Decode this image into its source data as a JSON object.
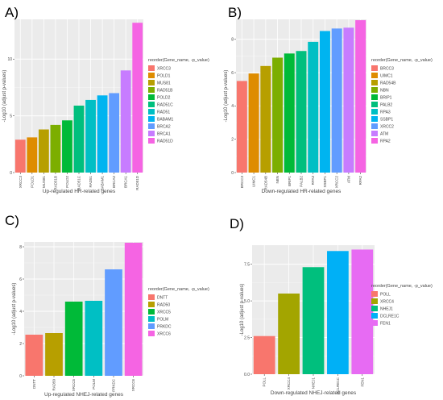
{
  "chart_data": [
    {
      "panel": "A)",
      "type": "bar",
      "xlabel": "Up-regulated HR-related genes",
      "ylabel": "-Log10 (adjust p-values)",
      "legend_title": "reorder(Gene_name, -p_value)",
      "ylim": [
        0,
        13.5
      ],
      "yticks": [
        0,
        5,
        10
      ],
      "grid": true,
      "legend_position": "right",
      "categories": [
        "XRCC3",
        "POLD1",
        "MUS81",
        "RAD51B",
        "POLD2",
        "RAD51C",
        "RAD51",
        "BABAM1",
        "BRCA2",
        "BRCA1",
        "RAD51D"
      ],
      "values": [
        2.9,
        3.1,
        3.8,
        4.2,
        4.6,
        5.9,
        6.4,
        6.8,
        7.0,
        9.0,
        13.2
      ],
      "colors": [
        "#F8766D",
        "#DE8C00",
        "#B79F00",
        "#7CAE00",
        "#00BA38",
        "#00BF7D",
        "#00BFC4",
        "#00B4F0",
        "#619CFF",
        "#C77CFF",
        "#F564E3"
      ]
    },
    {
      "panel": "B)",
      "type": "bar",
      "xlabel": "Down-regulated HR-related genes",
      "ylabel": "-Log10 (adjust p-values)",
      "legend_title": "reorder(Gene_name, -p_value)",
      "ylim": [
        0,
        9.2
      ],
      "yticks": [
        0,
        2,
        4,
        6,
        8
      ],
      "grid": true,
      "legend_position": "right",
      "categories": [
        "BRCC3",
        "UIMC1",
        "RAD54B",
        "NBN",
        "BRIP1",
        "PALB2",
        "RPA3",
        "SSBP1",
        "XRCC2",
        "ATM",
        "RPA2"
      ],
      "values": [
        5.5,
        5.95,
        6.4,
        6.9,
        7.15,
        7.3,
        7.85,
        8.5,
        8.65,
        8.7,
        9.15
      ],
      "colors": [
        "#F8766D",
        "#DE8C00",
        "#B79F00",
        "#7CAE00",
        "#00BA38",
        "#00BF7D",
        "#00BFC4",
        "#00B4F0",
        "#619CFF",
        "#C77CFF",
        "#F564E3"
      ]
    },
    {
      "panel": "C)",
      "type": "bar",
      "xlabel": "Up-regulated NHEJ-related genes",
      "ylabel": "-Log10 (adjust p-values)",
      "legend_title": "reorder(Gene_name, -p_value)",
      "ylim": [
        0,
        8.3
      ],
      "yticks": [
        0,
        2,
        4,
        6,
        8
      ],
      "grid": true,
      "legend_position": "right",
      "categories": [
        "DNTT",
        "RAD50",
        "XRCC5",
        "POLM",
        "PRKDC",
        "XRCC6"
      ],
      "values": [
        2.55,
        2.65,
        4.6,
        4.65,
        6.6,
        8.25
      ],
      "colors": [
        "#F8766D",
        "#B79F00",
        "#00BA38",
        "#00BFC4",
        "#619CFF",
        "#F564E3"
      ]
    },
    {
      "panel": "D)",
      "type": "bar",
      "xlabel": "Down-regulated NHEJ-related genes",
      "ylabel": "-Log10 (adjust p-values)",
      "legend_title": "reorder(Gene_name, -p_value)",
      "ylim": [
        0,
        8.8
      ],
      "yticks": [
        0.0,
        2.5,
        5.0,
        7.5
      ],
      "grid": true,
      "legend_position": "right",
      "categories": [
        "POLL",
        "XRCC4",
        "NHEJ1",
        "DCLRE1C",
        "FEN1"
      ],
      "values": [
        2.6,
        5.5,
        7.3,
        8.4,
        8.5
      ],
      "colors": [
        "#F8766D",
        "#A3A500",
        "#00BF7D",
        "#00B0F6",
        "#E76BF3"
      ]
    }
  ]
}
